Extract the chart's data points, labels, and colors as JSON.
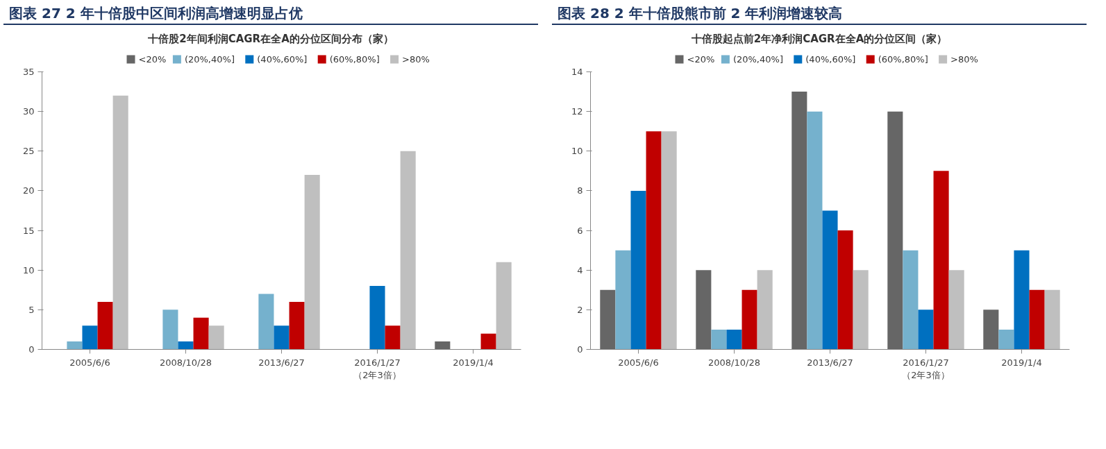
{
  "chart_data": [
    {
      "type": "bar",
      "title": "图表 27   2 年十倍股中区间利润高增速明显占优",
      "subtitle": "十倍股2年间利润CAGR在全A的分位区间分布（家）",
      "categories": [
        "2005/6/6",
        "2008/10/28",
        "2013/6/27",
        "2016/1/27\n（2年3倍）",
        "2019/1/4"
      ],
      "series": [
        {
          "name": "<20%",
          "color": "#666666",
          "values": [
            0,
            0,
            0,
            0,
            1
          ]
        },
        {
          "name": "(20%,40%]",
          "color": "#75b1cd",
          "values": [
            1,
            5,
            7,
            0,
            0
          ]
        },
        {
          "name": "(40%,60%]",
          "color": "#0070c0",
          "values": [
            3,
            1,
            3,
            8,
            0
          ]
        },
        {
          "name": "(60%,80%]",
          "color": "#c00000",
          "values": [
            6,
            4,
            6,
            3,
            2
          ]
        },
        {
          "name": ">80%",
          "color": "#bfbfbf",
          "values": [
            32,
            3,
            22,
            25,
            11
          ]
        }
      ],
      "ylim": [
        0,
        35
      ],
      "yticks": [
        0,
        5,
        10,
        15,
        20,
        25,
        30,
        35
      ],
      "grid": false,
      "legend": "top"
    },
    {
      "type": "bar",
      "title": "图表 28   2 年十倍股熊市前 2 年利润增速较高",
      "subtitle": "十倍股起点前2年净利润CAGR在全A的分位区间（家）",
      "categories": [
        "2005/6/6",
        "2008/10/28",
        "2013/6/27",
        "2016/1/27\n（2年3倍）",
        "2019/1/4"
      ],
      "series": [
        {
          "name": "<20%",
          "color": "#666666",
          "values": [
            3,
            4,
            13,
            12,
            2
          ]
        },
        {
          "name": "(20%,40%]",
          "color": "#75b1cd",
          "values": [
            5,
            1,
            12,
            5,
            1
          ]
        },
        {
          "name": "(40%,60%]",
          "color": "#0070c0",
          "values": [
            8,
            1,
            7,
            2,
            5
          ]
        },
        {
          "name": "(60%,80%]",
          "color": "#c00000",
          "values": [
            11,
            3,
            6,
            9,
            3
          ]
        },
        {
          "name": ">80%",
          "color": "#bfbfbf",
          "values": [
            11,
            4,
            4,
            4,
            3
          ]
        }
      ],
      "ylim": [
        0,
        14
      ],
      "yticks": [
        0,
        2,
        4,
        6,
        8,
        10,
        12,
        14
      ],
      "grid": false,
      "legend": "top"
    }
  ]
}
